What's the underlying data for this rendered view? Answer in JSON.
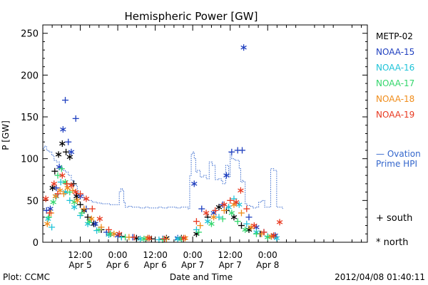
{
  "chart_data": {
    "type": "scatter",
    "title": "Hemispheric Power [GW]",
    "ylabel": "P [GW]",
    "xlabel": "Date and Time",
    "ylim": [
      0,
      260
    ],
    "xlim": [
      0,
      4.33
    ],
    "yticks": [
      0,
      50,
      100,
      150,
      200,
      250
    ],
    "xticks": [
      {
        "x": 0.5,
        "time": "12:00",
        "date": "Apr 5"
      },
      {
        "x": 1.0,
        "time": "0:00",
        "date": "Apr 6"
      },
      {
        "x": 1.5,
        "time": "12:00",
        "date": "Apr 6"
      },
      {
        "x": 2.0,
        "time": "0:00",
        "date": "Apr 7"
      },
      {
        "x": 2.5,
        "time": "12:00",
        "date": "Apr 7"
      },
      {
        "x": 3.0,
        "time": "0:00",
        "date": "Apr 8"
      }
    ],
    "series": [
      {
        "name": "METP-02",
        "color": "#000000",
        "points": [
          [
            0.13,
            65,
            "n"
          ],
          [
            0.16,
            85,
            "s"
          ],
          [
            0.21,
            105,
            "n"
          ],
          [
            0.26,
            118,
            "n"
          ],
          [
            0.31,
            108,
            "s"
          ],
          [
            0.36,
            102,
            "n"
          ],
          [
            0.41,
            70,
            "s"
          ],
          [
            0.45,
            55,
            "n"
          ],
          [
            0.5,
            45,
            "s"
          ],
          [
            0.55,
            38,
            "n"
          ],
          [
            0.6,
            30,
            "s"
          ],
          [
            0.68,
            22,
            "n"
          ],
          [
            0.78,
            15,
            "s"
          ],
          [
            0.9,
            10,
            "n"
          ],
          [
            1.05,
            7,
            "s"
          ],
          [
            1.25,
            5,
            "n"
          ],
          [
            1.45,
            4,
            "s"
          ],
          [
            1.65,
            5,
            "n"
          ],
          [
            1.85,
            5,
            "s"
          ],
          [
            2.05,
            10,
            "n"
          ],
          [
            2.2,
            30,
            "s"
          ],
          [
            2.35,
            42,
            "n"
          ],
          [
            2.45,
            38,
            "s"
          ],
          [
            2.55,
            30,
            "n"
          ],
          [
            2.65,
            20,
            "s"
          ],
          [
            2.75,
            15,
            "n"
          ],
          [
            2.9,
            10,
            "s"
          ],
          [
            3.05,
            7,
            "n"
          ]
        ]
      },
      {
        "name": "NOAA-15",
        "color": "#1f3fbf",
        "points": [
          [
            0.05,
            38,
            "s"
          ],
          [
            0.1,
            40,
            "n"
          ],
          [
            0.18,
            65,
            "s"
          ],
          [
            0.22,
            90,
            "n"
          ],
          [
            0.27,
            135,
            "n"
          ],
          [
            0.3,
            170,
            "s"
          ],
          [
            0.34,
            120,
            "s"
          ],
          [
            0.38,
            108,
            "n"
          ],
          [
            0.44,
            148,
            "s"
          ],
          [
            0.5,
            55,
            "n"
          ],
          [
            0.58,
            40,
            "s"
          ],
          [
            0.7,
            22,
            "n"
          ],
          [
            0.85,
            12,
            "s"
          ],
          [
            1.0,
            8,
            "n"
          ],
          [
            1.2,
            6,
            "s"
          ],
          [
            1.4,
            5,
            "n"
          ],
          [
            1.6,
            4,
            "s"
          ],
          [
            1.8,
            5,
            "n"
          ],
          [
            2.02,
            70,
            "n"
          ],
          [
            2.12,
            40,
            "s"
          ],
          [
            2.28,
            35,
            "n"
          ],
          [
            2.4,
            45,
            "s"
          ],
          [
            2.45,
            80,
            "n"
          ],
          [
            2.52,
            108,
            "s"
          ],
          [
            2.6,
            110,
            "s"
          ],
          [
            2.66,
            110,
            "s"
          ],
          [
            2.68,
            233,
            "n"
          ],
          [
            2.75,
            30,
            "s"
          ],
          [
            2.85,
            18,
            "n"
          ],
          [
            2.95,
            12,
            "s"
          ],
          [
            3.1,
            8,
            "n"
          ]
        ]
      },
      {
        "name": "NOAA-16",
        "color": "#1fc3d8",
        "points": [
          [
            0.07,
            28,
            "n"
          ],
          [
            0.12,
            18,
            "s"
          ],
          [
            0.18,
            55,
            "n"
          ],
          [
            0.24,
            72,
            "s"
          ],
          [
            0.3,
            60,
            "n"
          ],
          [
            0.36,
            50,
            "s"
          ],
          [
            0.42,
            42,
            "n"
          ],
          [
            0.5,
            32,
            "s"
          ],
          [
            0.6,
            22,
            "n"
          ],
          [
            0.72,
            14,
            "s"
          ],
          [
            0.88,
            9,
            "n"
          ],
          [
            1.05,
            6,
            "s"
          ],
          [
            1.3,
            4,
            "n"
          ],
          [
            1.55,
            3,
            "s"
          ],
          [
            1.8,
            4,
            "n"
          ],
          [
            2.05,
            15,
            "s"
          ],
          [
            2.2,
            25,
            "n"
          ],
          [
            2.35,
            30,
            "s"
          ],
          [
            2.48,
            42,
            "n"
          ],
          [
            2.55,
            52,
            "s"
          ],
          [
            2.62,
            45,
            "n"
          ],
          [
            2.72,
            22,
            "s"
          ],
          [
            2.85,
            12,
            "n"
          ],
          [
            3.0,
            7,
            "s"
          ],
          [
            3.12,
            5,
            "n"
          ]
        ]
      },
      {
        "name": "NOAA-17",
        "color": "#33d66b",
        "points": [
          [
            0.08,
            30,
            "s"
          ],
          [
            0.14,
            48,
            "n"
          ],
          [
            0.2,
            80,
            "s"
          ],
          [
            0.25,
            88,
            "s"
          ],
          [
            0.3,
            72,
            "n"
          ],
          [
            0.36,
            60,
            "s"
          ],
          [
            0.42,
            48,
            "n"
          ],
          [
            0.52,
            35,
            "s"
          ],
          [
            0.62,
            25,
            "n"
          ],
          [
            0.75,
            15,
            "s"
          ],
          [
            0.9,
            10,
            "n"
          ],
          [
            1.1,
            6,
            "s"
          ],
          [
            1.35,
            4,
            "n"
          ],
          [
            1.6,
            3,
            "s"
          ],
          [
            1.85,
            4,
            "n"
          ],
          [
            2.08,
            12,
            "s"
          ],
          [
            2.25,
            22,
            "n"
          ],
          [
            2.4,
            28,
            "s"
          ],
          [
            2.52,
            35,
            "n"
          ],
          [
            2.6,
            25,
            "s"
          ],
          [
            2.7,
            15,
            "n"
          ],
          [
            2.85,
            10,
            "s"
          ],
          [
            3.0,
            6,
            "n"
          ]
        ]
      },
      {
        "name": "NOAA-18",
        "color": "#f08c1a",
        "points": [
          [
            0.06,
            22,
            "n"
          ],
          [
            0.11,
            35,
            "s"
          ],
          [
            0.17,
            55,
            "n"
          ],
          [
            0.23,
            62,
            "n"
          ],
          [
            0.28,
            58,
            "s"
          ],
          [
            0.33,
            65,
            "n"
          ],
          [
            0.4,
            62,
            "s"
          ],
          [
            0.46,
            50,
            "n"
          ],
          [
            0.55,
            40,
            "s"
          ],
          [
            0.65,
            28,
            "n"
          ],
          [
            0.78,
            18,
            "s"
          ],
          [
            0.95,
            10,
            "n"
          ],
          [
            1.15,
            6,
            "s"
          ],
          [
            1.4,
            5,
            "n"
          ],
          [
            1.65,
            4,
            "s"
          ],
          [
            1.9,
            5,
            "n"
          ],
          [
            2.1,
            20,
            "s"
          ],
          [
            2.28,
            30,
            "n"
          ],
          [
            2.42,
            38,
            "s"
          ],
          [
            2.55,
            45,
            "n"
          ],
          [
            2.65,
            35,
            "s"
          ],
          [
            2.78,
            18,
            "n"
          ],
          [
            2.92,
            10,
            "s"
          ],
          [
            3.05,
            7,
            "n"
          ]
        ]
      },
      {
        "name": "NOAA-19",
        "color": "#e8381f",
        "points": [
          [
            0.04,
            52,
            "n"
          ],
          [
            0.09,
            35,
            "s"
          ],
          [
            0.15,
            70,
            "n"
          ],
          [
            0.2,
            58,
            "s"
          ],
          [
            0.26,
            80,
            "n"
          ],
          [
            0.32,
            70,
            "s"
          ],
          [
            0.38,
            68,
            "n"
          ],
          [
            0.44,
            60,
            "n"
          ],
          [
            0.5,
            58,
            "s"
          ],
          [
            0.58,
            52,
            "n"
          ],
          [
            0.66,
            40,
            "s"
          ],
          [
            0.76,
            28,
            "n"
          ],
          [
            0.88,
            15,
            "s"
          ],
          [
            1.02,
            10,
            "n"
          ],
          [
            1.22,
            6,
            "s"
          ],
          [
            1.42,
            5,
            "n"
          ],
          [
            1.62,
            4,
            "s"
          ],
          [
            1.88,
            5,
            "n"
          ],
          [
            2.05,
            25,
            "s"
          ],
          [
            2.18,
            35,
            "n"
          ],
          [
            2.3,
            38,
            "s"
          ],
          [
            2.42,
            45,
            "n"
          ],
          [
            2.5,
            50,
            "s"
          ],
          [
            2.58,
            48,
            "n"
          ],
          [
            2.64,
            62,
            "n"
          ],
          [
            2.72,
            40,
            "s"
          ],
          [
            2.82,
            20,
            "n"
          ],
          [
            2.95,
            12,
            "s"
          ],
          [
            3.08,
            8,
            "n"
          ],
          [
            3.16,
            24,
            "n"
          ]
        ]
      }
    ],
    "ovation": {
      "name": "Ovation Prime HPI",
      "label_line1": "— Ovation",
      "label_line2": "Prime HPI",
      "color": "#3366cc",
      "x": [
        0,
        0.02,
        0.05,
        0.08,
        0.12,
        0.15,
        0.18,
        0.22,
        0.26,
        0.3,
        0.34,
        0.38,
        0.42,
        0.46,
        0.5,
        0.55,
        0.6,
        0.66,
        0.72,
        0.78,
        0.84,
        0.9,
        0.96,
        1.0,
        1.02,
        1.04,
        1.06,
        1.08,
        1.1,
        1.14,
        1.18,
        1.24,
        1.3,
        1.36,
        1.42,
        1.48,
        1.54,
        1.6,
        1.66,
        1.72,
        1.78,
        1.84,
        1.9,
        1.94,
        1.96,
        1.98,
        2.0,
        2.02,
        2.04,
        2.06,
        2.1,
        2.14,
        2.18,
        2.22,
        2.26,
        2.3,
        2.34,
        2.38,
        2.4,
        2.44,
        2.48,
        2.5,
        2.52,
        2.56,
        2.6,
        2.62,
        2.64,
        2.66,
        2.68,
        2.7,
        2.72,
        2.76,
        2.8,
        2.84,
        2.88,
        2.92,
        2.96,
        3.0,
        3.04,
        3.08,
        3.12,
        3.16,
        3.2
      ],
      "y": [
        112,
        115,
        110,
        108,
        104,
        98,
        96,
        90,
        86,
        84,
        80,
        74,
        68,
        60,
        56,
        52,
        50,
        48,
        47,
        46,
        46,
        45,
        45,
        45,
        60,
        64,
        62,
        48,
        42,
        43,
        42,
        42,
        41,
        42,
        41,
        41,
        42,
        41,
        42,
        42,
        41,
        42,
        42,
        40,
        80,
        105,
        108,
        100,
        84,
        86,
        78,
        80,
        76,
        96,
        92,
        75,
        76,
        74,
        70,
        92,
        78,
        108,
        100,
        98,
        98,
        88,
        72,
        74,
        72,
        46,
        44,
        43,
        41,
        42,
        48,
        50,
        42,
        42,
        88,
        86,
        42,
        42,
        40
      ]
    },
    "marker_legend": {
      "south_symbol": "+",
      "south_label": "south",
      "north_symbol": "*",
      "north_label": "north"
    }
  },
  "footer": {
    "left": "Plot: CCMC",
    "right": "2012/04/08 01:40:11"
  }
}
